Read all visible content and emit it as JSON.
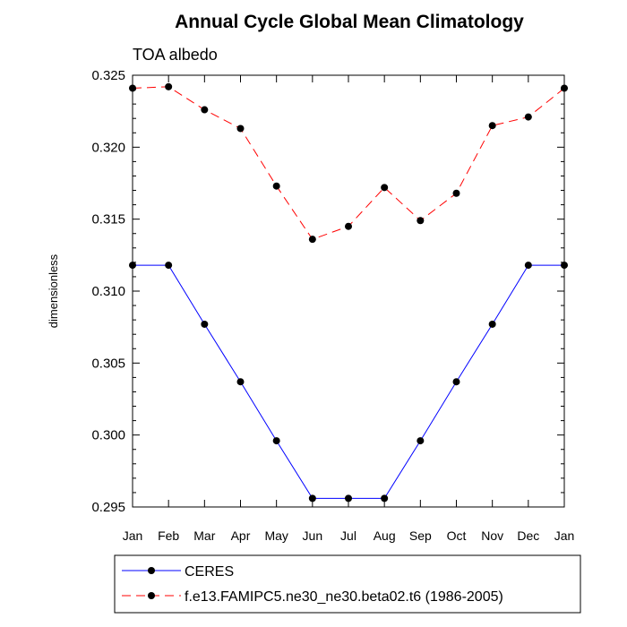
{
  "chart_data": {
    "type": "line",
    "title": "Annual Cycle Global Mean Climatology",
    "subtitle": "TOA albedo",
    "xlabel": "",
    "ylabel": "dimensionless",
    "categories": [
      "Jan",
      "Feb",
      "Mar",
      "Apr",
      "May",
      "Jun",
      "Jul",
      "Aug",
      "Sep",
      "Oct",
      "Nov",
      "Dec",
      "Jan"
    ],
    "ylim": [
      0.295,
      0.325
    ],
    "yticks": [
      "0.295",
      "0.300",
      "0.305",
      "0.310",
      "0.315",
      "0.320",
      "0.325"
    ],
    "series": [
      {
        "name": "CERES",
        "color": "#0000ff",
        "dash": "solid",
        "values": [
          0.3118,
          0.3118,
          0.3077,
          0.3037,
          0.2996,
          0.2956,
          0.2956,
          0.2956,
          0.2996,
          0.3037,
          0.3077,
          0.3118,
          0.3118
        ]
      },
      {
        "name": "f.e13.FAMIPC5.ne30_ne30.beta02.t6 (1986-2005)",
        "color": "#ff0000",
        "dash": "dashed",
        "values": [
          0.3241,
          0.3242,
          0.3226,
          0.3213,
          0.3173,
          0.3136,
          0.3145,
          0.3172,
          0.3149,
          0.3168,
          0.3215,
          0.3221,
          0.3241
        ]
      }
    ],
    "grid": false,
    "legend_position": "bottom"
  }
}
